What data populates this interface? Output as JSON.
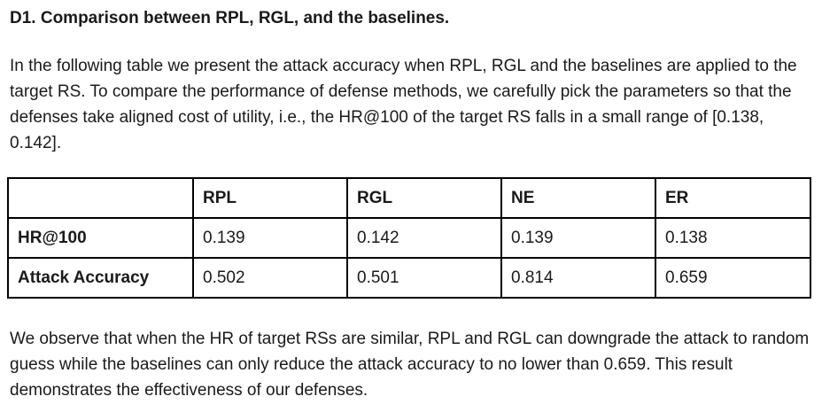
{
  "section": {
    "title": "D1. Comparison between RPL, RGL, and the baselines."
  },
  "intro": "In the following table we present the attack accuracy when RPL, RGL and the baselines are applied to the target RS. To compare the performance of defense methods, we carefully pick the parameters so that the defenses take aligned cost of utility, i.e., the HR@100 of the target RS falls in a small range of [0.138, 0.142].",
  "table": {
    "columns": [
      "",
      "RPL",
      "RGL",
      "NE",
      "ER"
    ],
    "rows": [
      {
        "label": "HR@100",
        "values": [
          "0.139",
          "0.142",
          "0.139",
          "0.138"
        ]
      },
      {
        "label": "Attack Accuracy",
        "values": [
          "0.502",
          "0.501",
          "0.814",
          "0.659"
        ]
      }
    ]
  },
  "conclusion": "We observe that when the HR of target RSs are similar, RPL and RGL can downgrade the attack to random guess while the baselines can only reduce the attack accuracy to no lower than 0.659. This result demonstrates the effectiveness of our defenses."
}
